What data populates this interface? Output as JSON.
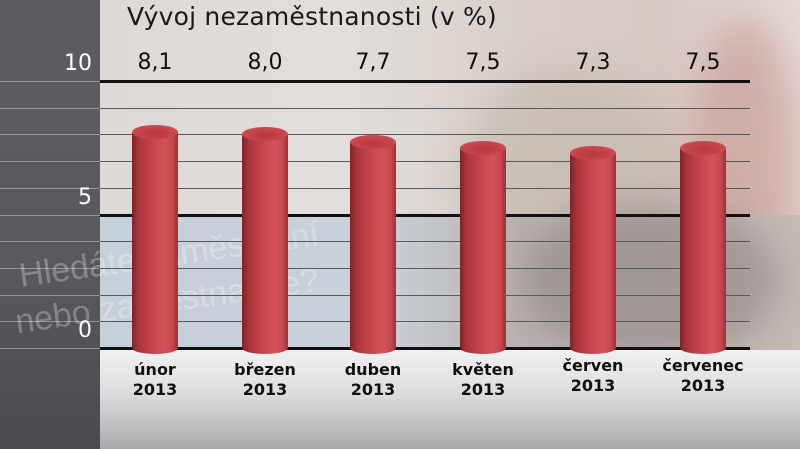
{
  "chart_data": {
    "type": "bar",
    "title": "Vývoj nezaměstnanosti (v %)",
    "categories": [
      "únor 2013",
      "březen 2013",
      "duben 2013",
      "květen 2013",
      "červen 2013",
      "červenec 2013"
    ],
    "category_lines": [
      [
        "únor",
        "2013"
      ],
      [
        "březen",
        "2013"
      ],
      [
        "duben",
        "2013"
      ],
      [
        "květen",
        "2013"
      ],
      [
        "červen",
        "2013"
      ],
      [
        "červenec",
        "2013"
      ]
    ],
    "values": [
      8.1,
      8.0,
      7.7,
      7.5,
      7.3,
      7.5
    ],
    "value_labels": [
      "8,1",
      "8,0",
      "7,7",
      "7,5",
      "7,3",
      "7,5"
    ],
    "xlabel": "",
    "ylabel": "",
    "ylim": [
      0,
      10
    ],
    "yticks": [
      "10",
      "5",
      "0"
    ],
    "grid": true,
    "minor_grid_step": 1,
    "bar_style": "3d-cylinder",
    "bar_color": "#c9434a"
  },
  "background": {
    "watermark_line1": "Hledáte zaměstnání",
    "watermark_line2": "nebo zaměstnance?"
  },
  "colors": {
    "left_panel": "#58595c",
    "bar": "#c9434a",
    "major_grid": "#111111",
    "minor_grid": "#5a5a5a"
  }
}
